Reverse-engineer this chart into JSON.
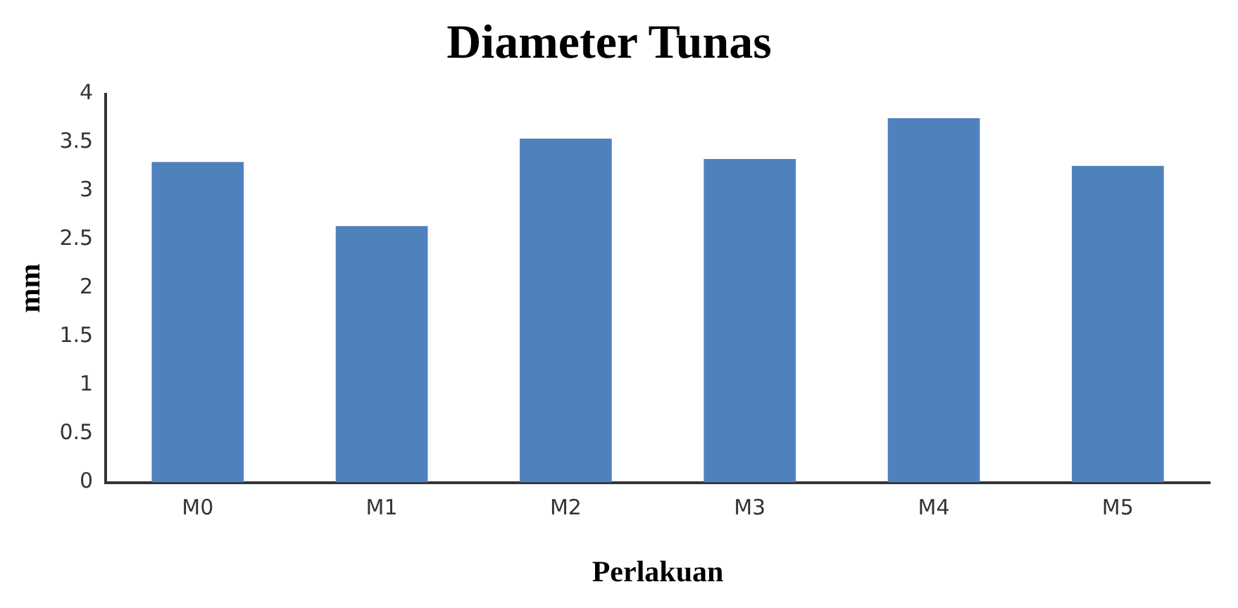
{
  "chart_data": {
    "type": "bar",
    "title": "Diameter Tunas",
    "xlabel": "Perlakuan",
    "ylabel": "mm",
    "categories": [
      "M0",
      "M1",
      "M2",
      "M3",
      "M4",
      "M5"
    ],
    "values": [
      3.3,
      2.64,
      3.54,
      3.33,
      3.75,
      3.26
    ],
    "color": "#4f81bd",
    "ylim": [
      0,
      4
    ],
    "yticks": [
      0,
      0.5,
      1,
      1.5,
      2,
      2.5,
      3,
      3.5,
      4
    ],
    "grid": false,
    "legend": false
  }
}
